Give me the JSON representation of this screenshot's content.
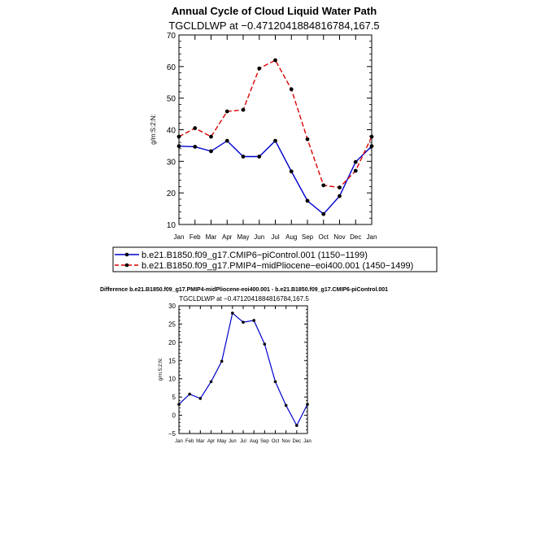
{
  "chart_data": [
    {
      "type": "line",
      "title": "Annual Cycle of Cloud Liquid Water Path",
      "subtitle": "TGCLDLWP  at  −0.4712041884816784,167.5",
      "ylabel": "g/m:S:2:N:",
      "xlabel": "",
      "categories": [
        "Jan",
        "Feb",
        "Mar",
        "Apr",
        "May",
        "Jun",
        "Jul",
        "Aug",
        "Sep",
        "Oct",
        "Nov",
        "Dec",
        "Jan"
      ],
      "ylim": [
        10,
        70
      ],
      "yticks": [
        10,
        20,
        30,
        40,
        50,
        60,
        70
      ],
      "legend_position": "below",
      "series": [
        {
          "name": "b.e21.B1850.f09_g17.CMIP6−piControl.001  (1150−1199)",
          "color": "#0000cc",
          "dash": "solid",
          "values": [
            34.8,
            34.6,
            33.2,
            36.5,
            31.5,
            31.5,
            36.5,
            26.8,
            17.5,
            13.3,
            19.0,
            29.8,
            34.8
          ]
        },
        {
          "name": "b.e21.B1850.f09_g17.PMIP4−midPliocene−eoi400.001  (1450−1499)",
          "color": "#dd0000",
          "dash": "dashed",
          "values": [
            37.8,
            40.5,
            37.8,
            45.8,
            46.3,
            59.4,
            62.0,
            52.8,
            37.0,
            22.4,
            21.7,
            27.0,
            37.8
          ]
        }
      ]
    },
    {
      "type": "line",
      "title": "Difference b.e21.B1850.f09_g17.PMIP4-midPliocene-eoi400.001 - b.e21.B1850.f09_g17.CMIP6-piControl.001",
      "subtitle": "TGCLDLWP  at  −0.4712041884816784,167.5",
      "ylabel": "g/m:S:2:N:",
      "xlabel": "",
      "categories": [
        "Jan",
        "Feb",
        "Mar",
        "Apr",
        "May",
        "Jun",
        "Jul",
        "Aug",
        "Sep",
        "Oct",
        "Nov",
        "Dec",
        "Jan"
      ],
      "ylim": [
        -5,
        30
      ],
      "yticks": [
        -5,
        0,
        5,
        10,
        15,
        20,
        25,
        30
      ],
      "series": [
        {
          "color": "#0000cc",
          "dash": "solid",
          "values": [
            3.0,
            5.8,
            4.6,
            9.2,
            14.8,
            28.0,
            25.5,
            26.0,
            19.5,
            9.2,
            2.7,
            -2.8,
            3.0
          ]
        }
      ]
    }
  ],
  "ytick_prefix_minus": "−"
}
